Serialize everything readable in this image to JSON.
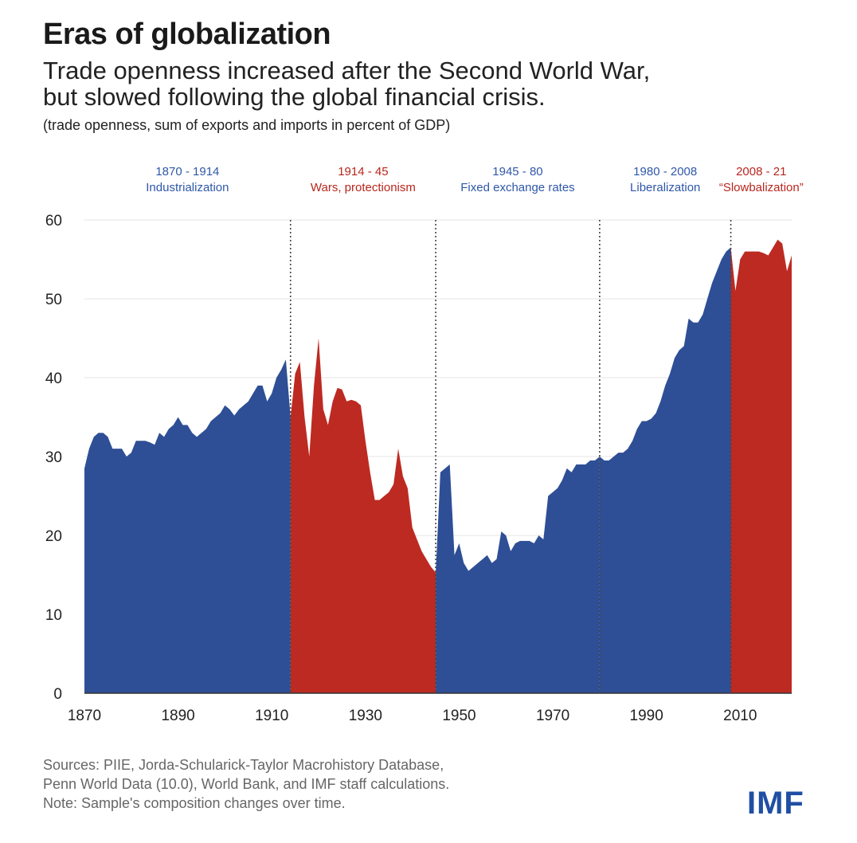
{
  "title": "Eras of globalization",
  "subtitle_lines": [
    "Trade openness increased after the Second World War,",
    "but slowed following the global financial crisis."
  ],
  "unit_note": "(trade openness, sum of exports and imports in percent of GDP)",
  "footer": {
    "lines": [
      "Sources: PIIE, Jorda-Schularick-Taylor Macrohistory Database,",
      "Penn World Data (10.0), World Bank, and IMF staff calculations.",
      "Note: Sample's composition changes over time."
    ]
  },
  "logo": "IMF",
  "colors": {
    "blue": "#2e4f96",
    "red": "#bd2a22",
    "grid": "#e6e6e6"
  },
  "chart_data": {
    "type": "area",
    "xlim": [
      1870,
      2021
    ],
    "ylim": [
      0,
      60
    ],
    "xticks": [
      1870,
      1890,
      1910,
      1930,
      1950,
      1970,
      1990,
      2010
    ],
    "yticks": [
      0,
      10,
      20,
      30,
      40,
      50,
      60
    ],
    "grid": "horizontal",
    "eras": [
      {
        "period": "1870 - 1914",
        "name": "Industrialization",
        "start": 1870,
        "end": 1914,
        "color": "blue"
      },
      {
        "period": "1914 - 45",
        "name": "Wars, protectionism",
        "start": 1914,
        "end": 1945,
        "color": "red"
      },
      {
        "period": "1945 - 80",
        "name": "Fixed exchange rates",
        "start": 1945,
        "end": 1980,
        "color": "blue"
      },
      {
        "period": "1980 - 2008",
        "name": "Liberalization",
        "start": 1980,
        "end": 2008,
        "color": "blue"
      },
      {
        "period": "2008 - 21",
        "name": "“Slowbalization”",
        "start": 2008,
        "end": 2021,
        "color": "red"
      }
    ],
    "dividers": [
      1914,
      1945,
      1980,
      2008
    ],
    "series": [
      {
        "values": [
          [
            1870,
            28.5
          ],
          [
            1871,
            31
          ],
          [
            1872,
            32.5
          ],
          [
            1873,
            33
          ],
          [
            1874,
            33
          ],
          [
            1875,
            32.5
          ],
          [
            1876,
            31
          ],
          [
            1877,
            31
          ],
          [
            1878,
            31
          ],
          [
            1879,
            30
          ],
          [
            1880,
            30.5
          ],
          [
            1881,
            32
          ],
          [
            1882,
            32
          ],
          [
            1883,
            32
          ],
          [
            1884,
            31.8
          ],
          [
            1885,
            31.5
          ],
          [
            1886,
            33
          ],
          [
            1887,
            32.5
          ],
          [
            1888,
            33.5
          ],
          [
            1889,
            34
          ],
          [
            1890,
            35
          ],
          [
            1891,
            34
          ],
          [
            1892,
            34
          ],
          [
            1893,
            33
          ],
          [
            1894,
            32.5
          ],
          [
            1895,
            33
          ],
          [
            1896,
            33.5
          ],
          [
            1897,
            34.5
          ],
          [
            1898,
            35
          ],
          [
            1899,
            35.5
          ],
          [
            1900,
            36.5
          ],
          [
            1901,
            36
          ],
          [
            1902,
            35.2
          ],
          [
            1903,
            36
          ],
          [
            1904,
            36.5
          ],
          [
            1905,
            37
          ],
          [
            1906,
            38
          ],
          [
            1907,
            39
          ],
          [
            1908,
            39
          ],
          [
            1909,
            37
          ],
          [
            1910,
            38
          ],
          [
            1911,
            40
          ],
          [
            1912,
            41
          ],
          [
            1913,
            42.3
          ],
          [
            1914,
            35
          ],
          [
            1915,
            40.5
          ],
          [
            1916,
            42
          ],
          [
            1917,
            35
          ],
          [
            1918,
            30
          ],
          [
            1919,
            39
          ],
          [
            1920,
            45
          ],
          [
            1921,
            36
          ],
          [
            1922,
            34
          ],
          [
            1923,
            37
          ],
          [
            1924,
            38.7
          ],
          [
            1925,
            38.5
          ],
          [
            1926,
            37
          ],
          [
            1927,
            37.2
          ],
          [
            1928,
            37
          ],
          [
            1929,
            36.5
          ],
          [
            1930,
            32
          ],
          [
            1931,
            28
          ],
          [
            1932,
            24.5
          ],
          [
            1933,
            24.5
          ],
          [
            1934,
            25
          ],
          [
            1935,
            25.5
          ],
          [
            1936,
            26.5
          ],
          [
            1937,
            31
          ],
          [
            1938,
            27.5
          ],
          [
            1939,
            26
          ],
          [
            1940,
            21
          ],
          [
            1941,
            19.5
          ],
          [
            1942,
            18
          ],
          [
            1943,
            17
          ],
          [
            1944,
            16
          ],
          [
            1945,
            15.3
          ],
          [
            1946,
            28
          ],
          [
            1947,
            28.5
          ],
          [
            1948,
            29
          ],
          [
            1949,
            17.5
          ],
          [
            1950,
            19
          ],
          [
            1951,
            16.5
          ],
          [
            1952,
            15.5
          ],
          [
            1953,
            16
          ],
          [
            1954,
            16.5
          ],
          [
            1955,
            17
          ],
          [
            1956,
            17.5
          ],
          [
            1957,
            16.5
          ],
          [
            1958,
            17
          ],
          [
            1959,
            20.5
          ],
          [
            1960,
            20
          ],
          [
            1961,
            18
          ],
          [
            1962,
            19
          ],
          [
            1963,
            19.3
          ],
          [
            1964,
            19.3
          ],
          [
            1965,
            19.3
          ],
          [
            1966,
            19
          ],
          [
            1967,
            20
          ],
          [
            1968,
            19.5
          ],
          [
            1969,
            25
          ],
          [
            1970,
            25.5
          ],
          [
            1971,
            26
          ],
          [
            1972,
            27
          ],
          [
            1973,
            28.5
          ],
          [
            1974,
            28
          ],
          [
            1975,
            29
          ],
          [
            1976,
            29
          ],
          [
            1977,
            29
          ],
          [
            1978,
            29.5
          ],
          [
            1979,
            29.5
          ],
          [
            1980,
            30
          ],
          [
            1981,
            29.5
          ],
          [
            1982,
            29.5
          ],
          [
            1983,
            30
          ],
          [
            1984,
            30.5
          ],
          [
            1985,
            30.5
          ],
          [
            1986,
            31
          ],
          [
            1987,
            32
          ],
          [
            1988,
            33.5
          ],
          [
            1989,
            34.5
          ],
          [
            1990,
            34.5
          ],
          [
            1991,
            34.8
          ],
          [
            1992,
            35.5
          ],
          [
            1993,
            37
          ],
          [
            1994,
            39
          ],
          [
            1995,
            40.5
          ],
          [
            1996,
            42.5
          ],
          [
            1997,
            43.5
          ],
          [
            1998,
            44
          ],
          [
            1999,
            47.5
          ],
          [
            2000,
            47
          ],
          [
            2001,
            47
          ],
          [
            2002,
            48
          ],
          [
            2003,
            50
          ],
          [
            2004,
            52
          ],
          [
            2005,
            53.5
          ],
          [
            2006,
            55
          ],
          [
            2007,
            56
          ],
          [
            2008,
            56.5
          ],
          [
            2009,
            51
          ],
          [
            2010,
            55
          ],
          [
            2011,
            56
          ],
          [
            2012,
            56
          ],
          [
            2013,
            56
          ],
          [
            2014,
            56
          ],
          [
            2015,
            55.8
          ],
          [
            2016,
            55.5
          ],
          [
            2017,
            56.5
          ],
          [
            2018,
            57.5
          ],
          [
            2019,
            57
          ],
          [
            2020,
            53.5
          ],
          [
            2021,
            55.5
          ]
        ]
      }
    ]
  }
}
